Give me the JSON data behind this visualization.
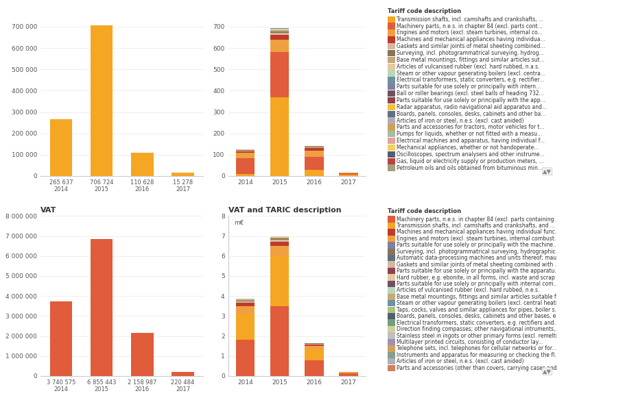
{
  "top_left": {
    "years": [
      "2014",
      "2015",
      "2016",
      "2017"
    ],
    "values": [
      265637,
      706724,
      110628,
      15278
    ],
    "bar_color": "#F5A623",
    "ylim": [
      0,
      750000
    ],
    "yticks": [
      0,
      100000,
      200000,
      300000,
      400000,
      500000,
      600000,
      700000
    ]
  },
  "top_right": {
    "years": [
      "2014",
      "2015",
      "2016",
      "2017"
    ],
    "ylim": [
      0,
      750
    ],
    "yticks": [
      0,
      100,
      200,
      300,
      400,
      500,
      600,
      700
    ],
    "stacked_data": {
      "2014": [
        {
          "value": 8,
          "color": "#F5A623"
        },
        {
          "value": 75,
          "color": "#E05C3A"
        },
        {
          "value": 25,
          "color": "#F0A040"
        },
        {
          "value": 8,
          "color": "#C0392B"
        },
        {
          "value": 3,
          "color": "#D4B8A0"
        },
        {
          "value": 2,
          "color": "#8B7355"
        },
        {
          "value": 2,
          "color": "#C8A878"
        },
        {
          "value": 1,
          "color": "#E8C8A0"
        },
        {
          "value": 1,
          "color": "#B8D8B8"
        },
        {
          "value": 1,
          "color": "#7090A0"
        }
      ],
      "2015": [
        {
          "value": 370,
          "color": "#F5A623"
        },
        {
          "value": 210,
          "color": "#E05C3A"
        },
        {
          "value": 60,
          "color": "#F0A040"
        },
        {
          "value": 20,
          "color": "#C0392B"
        },
        {
          "value": 10,
          "color": "#D4B8A0"
        },
        {
          "value": 8,
          "color": "#8B7355"
        },
        {
          "value": 5,
          "color": "#C8A878"
        },
        {
          "value": 4,
          "color": "#E8C8A0"
        },
        {
          "value": 3,
          "color": "#B8D8B8"
        },
        {
          "value": 2,
          "color": "#7090A0"
        }
      ],
      "2016": [
        {
          "value": 30,
          "color": "#F5A623"
        },
        {
          "value": 60,
          "color": "#E05C3A"
        },
        {
          "value": 30,
          "color": "#F0A040"
        },
        {
          "value": 10,
          "color": "#C0392B"
        },
        {
          "value": 5,
          "color": "#D4B8A0"
        },
        {
          "value": 3,
          "color": "#8B7355"
        },
        {
          "value": 2,
          "color": "#C8A878"
        },
        {
          "value": 2,
          "color": "#E8C8A0"
        }
      ],
      "2017": [
        {
          "value": 5,
          "color": "#F5A623"
        },
        {
          "value": 8,
          "color": "#E05C3A"
        },
        {
          "value": 2,
          "color": "#F0A040"
        }
      ]
    }
  },
  "bottom_left": {
    "title": "VAT",
    "years": [
      "2014",
      "2015",
      "2016",
      "2017"
    ],
    "values": [
      3740575,
      6855443,
      2158987,
      220484
    ],
    "bar_color": "#E05C3A",
    "ylim": [
      0,
      8000000
    ],
    "yticks": [
      0,
      1000000,
      2000000,
      3000000,
      4000000,
      5000000,
      6000000,
      7000000,
      8000000
    ]
  },
  "bottom_right": {
    "title": "VAT and TARIC description",
    "ylabel": "m€",
    "years": [
      "2014",
      "2015",
      "2016",
      "2017"
    ],
    "ylim": [
      0,
      8
    ],
    "yticks": [
      0,
      1,
      2,
      3,
      4,
      5,
      6,
      7,
      8
    ],
    "stacked_data": {
      "2014": [
        {
          "value": 1.8,
          "color": "#E05C3A"
        },
        {
          "value": 1.3,
          "color": "#F5A623"
        },
        {
          "value": 0.4,
          "color": "#F0A040"
        },
        {
          "value": 0.15,
          "color": "#C0392B"
        },
        {
          "value": 0.08,
          "color": "#D4B8A0"
        },
        {
          "value": 0.05,
          "color": "#8B7355"
        },
        {
          "value": 0.04,
          "color": "#C8A878"
        },
        {
          "value": 0.03,
          "color": "#E8C8A0"
        },
        {
          "value": 0.02,
          "color": "#B8D8B8"
        },
        {
          "value": 0.01,
          "color": "#7090A0"
        }
      ],
      "2015": [
        {
          "value": 3.5,
          "color": "#E05C3A"
        },
        {
          "value": 2.5,
          "color": "#F5A623"
        },
        {
          "value": 0.5,
          "color": "#F0A040"
        },
        {
          "value": 0.2,
          "color": "#C0392B"
        },
        {
          "value": 0.1,
          "color": "#D4B8A0"
        },
        {
          "value": 0.08,
          "color": "#8B7355"
        },
        {
          "value": 0.05,
          "color": "#C8A878"
        },
        {
          "value": 0.04,
          "color": "#E8C8A0"
        },
        {
          "value": 0.02,
          "color": "#B8D8B8"
        },
        {
          "value": 0.01,
          "color": "#7090A0"
        }
      ],
      "2016": [
        {
          "value": 0.8,
          "color": "#E05C3A"
        },
        {
          "value": 0.55,
          "color": "#F5A623"
        },
        {
          "value": 0.15,
          "color": "#F0A040"
        },
        {
          "value": 0.08,
          "color": "#C0392B"
        },
        {
          "value": 0.04,
          "color": "#D4B8A0"
        },
        {
          "value": 0.02,
          "color": "#8B7355"
        },
        {
          "value": 0.01,
          "color": "#C8A878"
        }
      ],
      "2017": [
        {
          "value": 0.13,
          "color": "#E05C3A"
        },
        {
          "value": 0.05,
          "color": "#F5A623"
        },
        {
          "value": 0.02,
          "color": "#F0A040"
        }
      ]
    }
  },
  "legend_top": {
    "title": "Tariff code description",
    "entries": [
      {
        "label": "Transmission shafts, incl. camshafts and crankshafts, ...",
        "color": "#F5A623"
      },
      {
        "label": "Machinery parts, n.e.s. in chapter 84 (excl. parts cont...",
        "color": "#E05C3A"
      },
      {
        "label": "Engines and motors (excl. steam turbines, internal co...",
        "color": "#F0A040"
      },
      {
        "label": "Machines and mechanical appliances having individua...",
        "color": "#C0392B"
      },
      {
        "label": "Gaskets and similar joints of metal sheeting combined...",
        "color": "#D4B8A0"
      },
      {
        "label": "Surveying, incl. photogrammatrical surveying, hydrog...",
        "color": "#8B7355"
      },
      {
        "label": "Base metal mountings, fittings and similar articles sut...",
        "color": "#C8A878"
      },
      {
        "label": "Articles of vulcanised rubber (excl. hard rubbed, n.a.s.",
        "color": "#E8C8A0"
      },
      {
        "label": "Steam or other vapour generating boilers (excl. centra...",
        "color": "#B8D8B8"
      },
      {
        "label": "Electrical transformers, static converters, e.g. rectifier...",
        "color": "#7090A0"
      },
      {
        "label": "Parts suitable for use solely or principally with intern...",
        "color": "#8080A0"
      },
      {
        "label": "Ball or roller bearings (excl. steel balls of heading 732...",
        "color": "#705060"
      },
      {
        "label": "Parts suitable for use solely or principally with the app...",
        "color": "#904050"
      },
      {
        "label": "Radar apparatus, radio navigational aid apparatus and...",
        "color": "#F0C040"
      },
      {
        "label": "Boards, panels, consoles, desks, cabinets and other ba...",
        "color": "#607080"
      },
      {
        "label": "Articles of iron or steel, n.e.s. (excl. cast anided)",
        "color": "#B0B0B0"
      },
      {
        "label": "Parts and accessories for tractors, motor vehicles for t...",
        "color": "#D0A060"
      },
      {
        "label": "Pumps for liquids, whether or not fitted with a measu...",
        "color": "#A0C0A0"
      },
      {
        "label": "Electrical machines and apparatus, having individual f...",
        "color": "#E8A0A0"
      },
      {
        "label": "Mechanical appliances, whether or not handoperate...",
        "color": "#F0D060"
      },
      {
        "label": "Oscilloscopes, spectrum analysers and other instrume...",
        "color": "#506070"
      },
      {
        "label": "Gas, liquid or electricity supply or production meters, ...",
        "color": "#C04040"
      },
      {
        "label": "Petroleum oils and oils obtained from bituminous min...",
        "color": "#A0A080"
      }
    ]
  },
  "legend_bottom": {
    "title": "Tariff code description",
    "entries": [
      {
        "label": "Machinery parts, n.e.s. in chapter 84 (excl. parts containing ...",
        "color": "#E05C3A"
      },
      {
        "label": "Transmission shafts, incl. camshafts and crankshafts, and ...",
        "color": "#F5A623"
      },
      {
        "label": "Machines and mechanical appliances having individual func...",
        "color": "#C0392B"
      },
      {
        "label": "Engines and motors (excl. steam turbines, internal combust...",
        "color": "#F0A040"
      },
      {
        "label": "Parts suitable for use solely or principally with the machine...",
        "color": "#8080A0"
      },
      {
        "label": "Surveying, incl. photogrammatrical surveying, hydrographic...",
        "color": "#8B7355"
      },
      {
        "label": "Automatic data-processing machines and units thereof; mau...",
        "color": "#607080"
      },
      {
        "label": "Gaskets and similar joints of metal sheeting combined with ...",
        "color": "#D4B8A0"
      },
      {
        "label": "Parts suitable for use solely or principally with the apparatu...",
        "color": "#904050"
      },
      {
        "label": "Hard rubber, e.g. ebonite, in all forms, incl. waste and scrap",
        "color": "#E8C8A0"
      },
      {
        "label": "Parts suitable for use solely or principally with internal com...",
        "color": "#705060"
      },
      {
        "label": "Articles of vulcanised rubber (excl. hard rubbed, n.e.s.",
        "color": "#B8D8B8"
      },
      {
        "label": "Base metal mountings, fittings and similar articles suitable f...",
        "color": "#C8A878"
      },
      {
        "label": "Steam or other vapour generating boilers (excl. central heati...",
        "color": "#7090A0"
      },
      {
        "label": "Taps, cocks, valves and similar appliances for pipes, boiler s...",
        "color": "#B0C080"
      },
      {
        "label": "Boards, panels, consoles, desks, cabinets and other bases, e...",
        "color": "#506070"
      },
      {
        "label": "Electrical transformers, static converters, e.g. rectifiers and...",
        "color": "#70A080"
      },
      {
        "label": "Direction finding compasses; other navigational intruments,...",
        "color": "#D0D0A0"
      },
      {
        "label": "Stainless steel in ingots or other primary forms (excl. remelti...",
        "color": "#C0C0C0"
      },
      {
        "label": "Multilayer printed circuits, consisting of conductor lay...",
        "color": "#A090B0"
      },
      {
        "label": "Telephone sets, incl. telephones for cellular networks or for...",
        "color": "#D0A060"
      },
      {
        "label": "Instruments and apparatus for measuring or checking the fl...",
        "color": "#80A090"
      },
      {
        "label": "Articles of iron or steel, n.e.s. (excl. cast anided)",
        "color": "#B0B0B0"
      },
      {
        "label": "Parts and accessories (other than covers, carrying cases and...",
        "color": "#D08060"
      }
    ]
  },
  "background_color": "#FFFFFF",
  "grid_color": "#E8E8E8",
  "divider_color": "#111111",
  "tick_fontsize": 6.5,
  "title_fontsize": 8,
  "legend_fontsize": 5.5
}
